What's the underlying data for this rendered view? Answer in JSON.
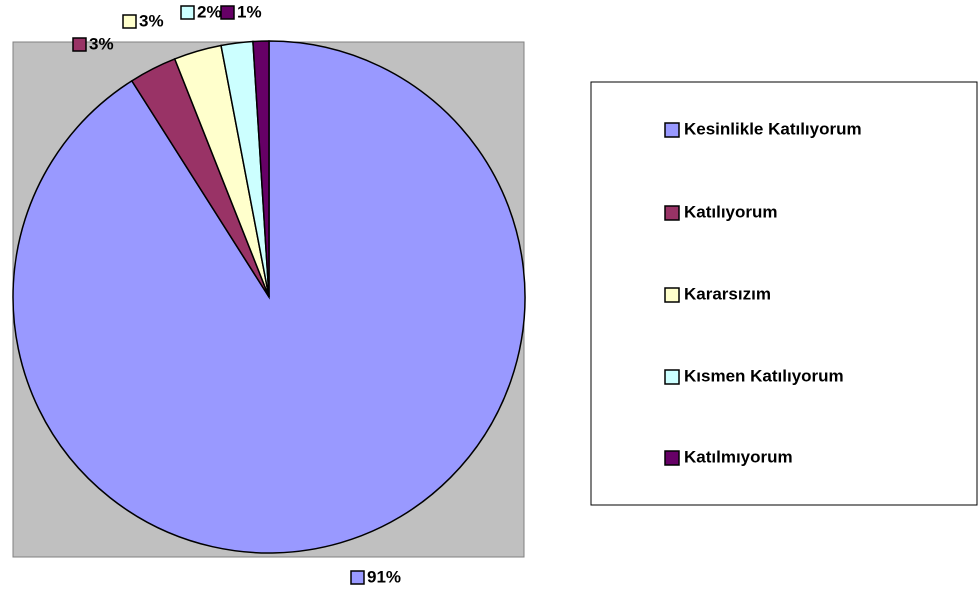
{
  "chart_data": {
    "type": "pie",
    "categories": [
      "Kesinlikle Katılıyorum",
      "Katılıyorum",
      "Kararsızım",
      "Kısmen Katılıyorum",
      "Katılmıyorum"
    ],
    "values": [
      91,
      3,
      3,
      2,
      1
    ],
    "value_labels": [
      "91%",
      "3%",
      "3%",
      "2%",
      "1%"
    ],
    "colors": [
      "#9999ff",
      "#993366",
      "#ffffcc",
      "#ccffff",
      "#660066"
    ],
    "legend": "right"
  }
}
